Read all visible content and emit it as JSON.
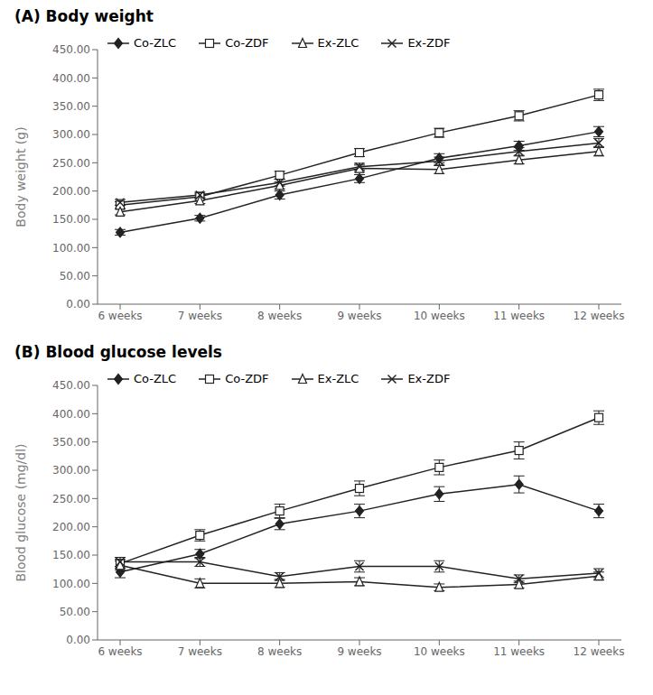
{
  "chart_data": [
    {
      "type": "line",
      "title": "(A) Body weight",
      "y_label": "Body weight (g)",
      "categories": [
        "6 weeks",
        "7 weeks",
        "8 weeks",
        "9 weeks",
        "10 weeks",
        "11 weeks",
        "12 weeks"
      ],
      "ylim": [
        0,
        450
      ],
      "yticks": [
        {
          "value": 0,
          "label": "0.00"
        },
        {
          "value": 50,
          "label": "50.00"
        },
        {
          "value": 100,
          "label": "100.00"
        },
        {
          "value": 150,
          "label": "150.00"
        },
        {
          "value": 200,
          "label": "200.00"
        },
        {
          "value": 250,
          "label": "250.00"
        },
        {
          "value": 300,
          "label": "300.00"
        },
        {
          "value": 350,
          "label": "350.00"
        },
        {
          "value": 400,
          "label": "400.00"
        },
        {
          "value": 450,
          "label": "450.00"
        }
      ],
      "grid": false,
      "legend": "upper left",
      "series": [
        {
          "name": "Co-ZLC",
          "color": "#222222",
          "marker": "diamond",
          "line_style": "solid",
          "values": [
            127,
            152,
            193,
            222,
            258,
            280,
            305
          ],
          "errors": [
            5,
            5,
            7,
            7,
            8,
            8,
            9
          ]
        },
        {
          "name": "Co-ZDF",
          "color": "#222222",
          "marker": "square_open",
          "line_style": "solid",
          "values": [
            175,
            190,
            228,
            268,
            303,
            333,
            370
          ],
          "errors": [
            6,
            5,
            7,
            7,
            8,
            9,
            10
          ]
        },
        {
          "name": "Ex-ZLC",
          "color": "#222222",
          "marker": "triangle_open",
          "line_style": "solid",
          "values": [
            163,
            183,
            210,
            240,
            238,
            255,
            270
          ],
          "errors": [
            5,
            5,
            6,
            6,
            7,
            7,
            8
          ]
        },
        {
          "name": "Ex-ZDF",
          "color": "#222222",
          "marker": "cross",
          "line_style": "solid",
          "values": [
            180,
            193,
            215,
            243,
            253,
            270,
            285
          ],
          "errors": [
            5,
            5,
            6,
            6,
            7,
            7,
            8
          ]
        }
      ]
    },
    {
      "type": "line",
      "title": "(B) Blood glucose levels",
      "y_label": "Blood glucose (mg/dl)",
      "categories": [
        "6 weeks",
        "7 weeks",
        "8 weeks",
        "9 weeks",
        "10 weeks",
        "11 weeks",
        "12 weeks"
      ],
      "ylim": [
        0,
        450
      ],
      "yticks": [
        {
          "value": 0,
          "label": "0.00"
        },
        {
          "value": 50,
          "label": "50.00"
        },
        {
          "value": 100,
          "label": "100.00"
        },
        {
          "value": 150,
          "label": "150.00"
        },
        {
          "value": 200,
          "label": "200.00"
        },
        {
          "value": 250,
          "label": "250.00"
        },
        {
          "value": 300,
          "label": "300.00"
        },
        {
          "value": 350,
          "label": "350.00"
        },
        {
          "value": 400,
          "label": "400.00"
        },
        {
          "value": 450,
          "label": "450.00"
        }
      ],
      "grid": false,
      "legend": "upper left",
      "series": [
        {
          "name": "Co-ZLC",
          "color": "#222222",
          "marker": "diamond",
          "line_style": "solid",
          "values": [
            120,
            152,
            205,
            228,
            258,
            275,
            228
          ],
          "errors": [
            10,
            8,
            10,
            12,
            13,
            15,
            12
          ]
        },
        {
          "name": "Co-ZDF",
          "color": "#222222",
          "marker": "square_open",
          "line_style": "solid",
          "values": [
            135,
            185,
            228,
            268,
            305,
            335,
            393
          ],
          "errors": [
            8,
            10,
            12,
            13,
            13,
            15,
            12
          ]
        },
        {
          "name": "Ex-ZLC",
          "color": "#222222",
          "marker": "triangle_open",
          "line_style": "solid",
          "values": [
            132,
            100,
            100,
            103,
            93,
            98,
            113
          ],
          "errors": [
            8,
            8,
            7,
            7,
            6,
            6,
            7
          ]
        },
        {
          "name": "Ex-ZDF",
          "color": "#222222",
          "marker": "cross",
          "line_style": "solid",
          "values": [
            138,
            138,
            112,
            130,
            130,
            108,
            118
          ],
          "errors": [
            8,
            8,
            7,
            10,
            10,
            7,
            8
          ]
        }
      ]
    }
  ]
}
